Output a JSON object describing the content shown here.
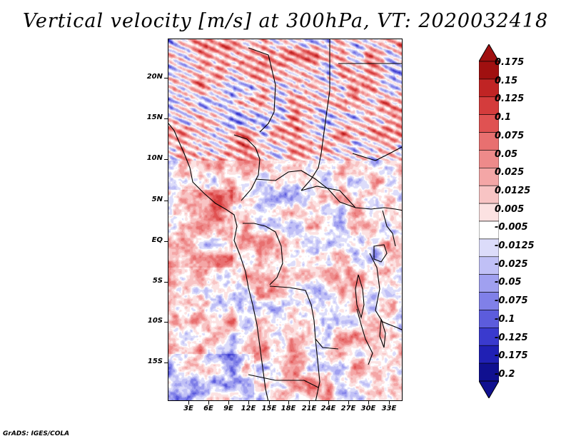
{
  "title": "Vertical velocity [m/s] at 300hPa, VT: 2020032418",
  "credit": "GrADS: IGES/COLA",
  "lat_labels": [
    "20N",
    "15N",
    "10N",
    "5N",
    "EQ",
    "5S",
    "10S",
    "15S"
  ],
  "lon_labels": [
    "3E",
    "6E",
    "9E",
    "12E",
    "15E",
    "18E",
    "21E",
    "24E",
    "27E",
    "30E",
    "33E"
  ],
  "colorbar": {
    "levels": [
      "0.175",
      "0.15",
      "0.125",
      "0.1",
      "0.075",
      "0.05",
      "0.025",
      "0.0125",
      "0.005",
      "-0.005",
      "-0.0125",
      "-0.025",
      "-0.05",
      "-0.075",
      "-0.1",
      "-0.125",
      "-0.175",
      "-0.2"
    ],
    "colors": [
      "#a01010",
      "#c02424",
      "#d43c3c",
      "#e05252",
      "#e87070",
      "#ee8a8a",
      "#f4a6a6",
      "#f8c4c4",
      "#fce2e2",
      "#ffffff",
      "#dcdcfa",
      "#c0c0f6",
      "#a0a0f0",
      "#8080e8",
      "#5c5cdc",
      "#3a3ace",
      "#2020b4",
      "#101090"
    ]
  }
}
